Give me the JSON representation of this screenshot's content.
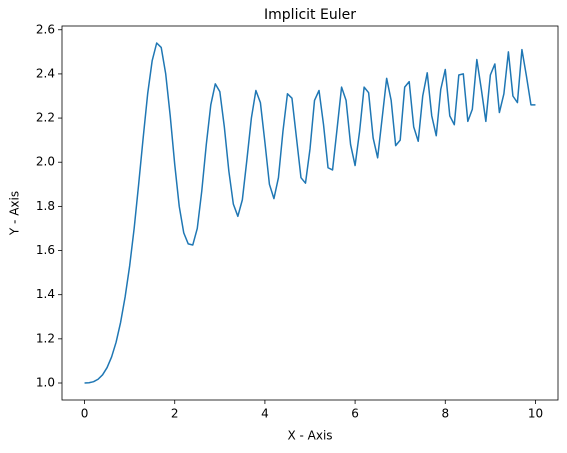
{
  "chart_data": {
    "type": "line",
    "title": "Implicit Euler",
    "x_label": "X - Axis",
    "y_label": "Y - Axis",
    "x": [
      0.0,
      0.1,
      0.2,
      0.3,
      0.4,
      0.5,
      0.6,
      0.7,
      0.8,
      0.9,
      1.0,
      1.1,
      1.2,
      1.3,
      1.4,
      1.5,
      1.6,
      1.7,
      1.8,
      1.9,
      2.0,
      2.1,
      2.2,
      2.3,
      2.4,
      2.5,
      2.6,
      2.7,
      2.8,
      2.9,
      3.0,
      3.1,
      3.2,
      3.3,
      3.4,
      3.5,
      3.6,
      3.7,
      3.8,
      3.9,
      4.0,
      4.1,
      4.2,
      4.3,
      4.4,
      4.5,
      4.6,
      4.7,
      4.8,
      4.9,
      5.0,
      5.1,
      5.2,
      5.3,
      5.4,
      5.5,
      5.6,
      5.7,
      5.8,
      5.9,
      6.0,
      6.1,
      6.2,
      6.3,
      6.4,
      6.5,
      6.6,
      6.7,
      6.8,
      6.9,
      7.0,
      7.1,
      7.2,
      7.3,
      7.4,
      7.5,
      7.6,
      7.7,
      7.8,
      7.9,
      8.0,
      8.1,
      8.2,
      8.3,
      8.4,
      8.5,
      8.6,
      8.7,
      8.8,
      8.9,
      9.0,
      9.1,
      9.2,
      9.3,
      9.4,
      9.5,
      9.6,
      9.7,
      9.8,
      9.9,
      10.0
    ],
    "values": [
      1.0,
      1.001,
      1.006,
      1.017,
      1.037,
      1.07,
      1.118,
      1.185,
      1.275,
      1.39,
      1.53,
      1.7,
      1.9,
      2.11,
      2.31,
      2.46,
      2.54,
      2.52,
      2.4,
      2.21,
      1.99,
      1.8,
      1.68,
      1.63,
      1.625,
      1.7,
      1.87,
      2.08,
      2.26,
      2.355,
      2.32,
      2.16,
      1.96,
      1.81,
      1.755,
      1.83,
      2.01,
      2.2,
      2.325,
      2.27,
      2.09,
      1.9,
      1.835,
      1.93,
      2.14,
      2.31,
      2.29,
      2.11,
      1.93,
      1.905,
      2.06,
      2.28,
      2.325,
      2.17,
      1.975,
      1.965,
      2.15,
      2.34,
      2.28,
      2.08,
      1.985,
      2.14,
      2.34,
      2.315,
      2.11,
      2.02,
      2.2,
      2.38,
      2.28,
      2.075,
      2.1,
      2.34,
      2.365,
      2.16,
      2.095,
      2.3,
      2.405,
      2.21,
      2.12,
      2.33,
      2.42,
      2.21,
      2.17,
      2.395,
      2.4,
      2.185,
      2.24,
      2.465,
      2.33,
      2.185,
      2.395,
      2.445,
      2.225,
      2.31,
      2.5,
      2.3,
      2.27,
      2.51,
      2.39,
      2.26,
      2.26
    ],
    "color": "#1f77b4",
    "xlim": [
      -0.5,
      10.5
    ],
    "xticks": [
      0,
      2,
      4,
      6,
      8,
      10
    ],
    "ylim": [
      0.923,
      2.617
    ],
    "yticks": [
      {
        "value": 1.0,
        "label": "1.0"
      },
      1.2,
      1.4,
      1.6,
      1.8,
      {
        "value": 2.0,
        "label": "2.0"
      },
      2.2,
      2.4,
      2.6
    ],
    "grid": false
  }
}
